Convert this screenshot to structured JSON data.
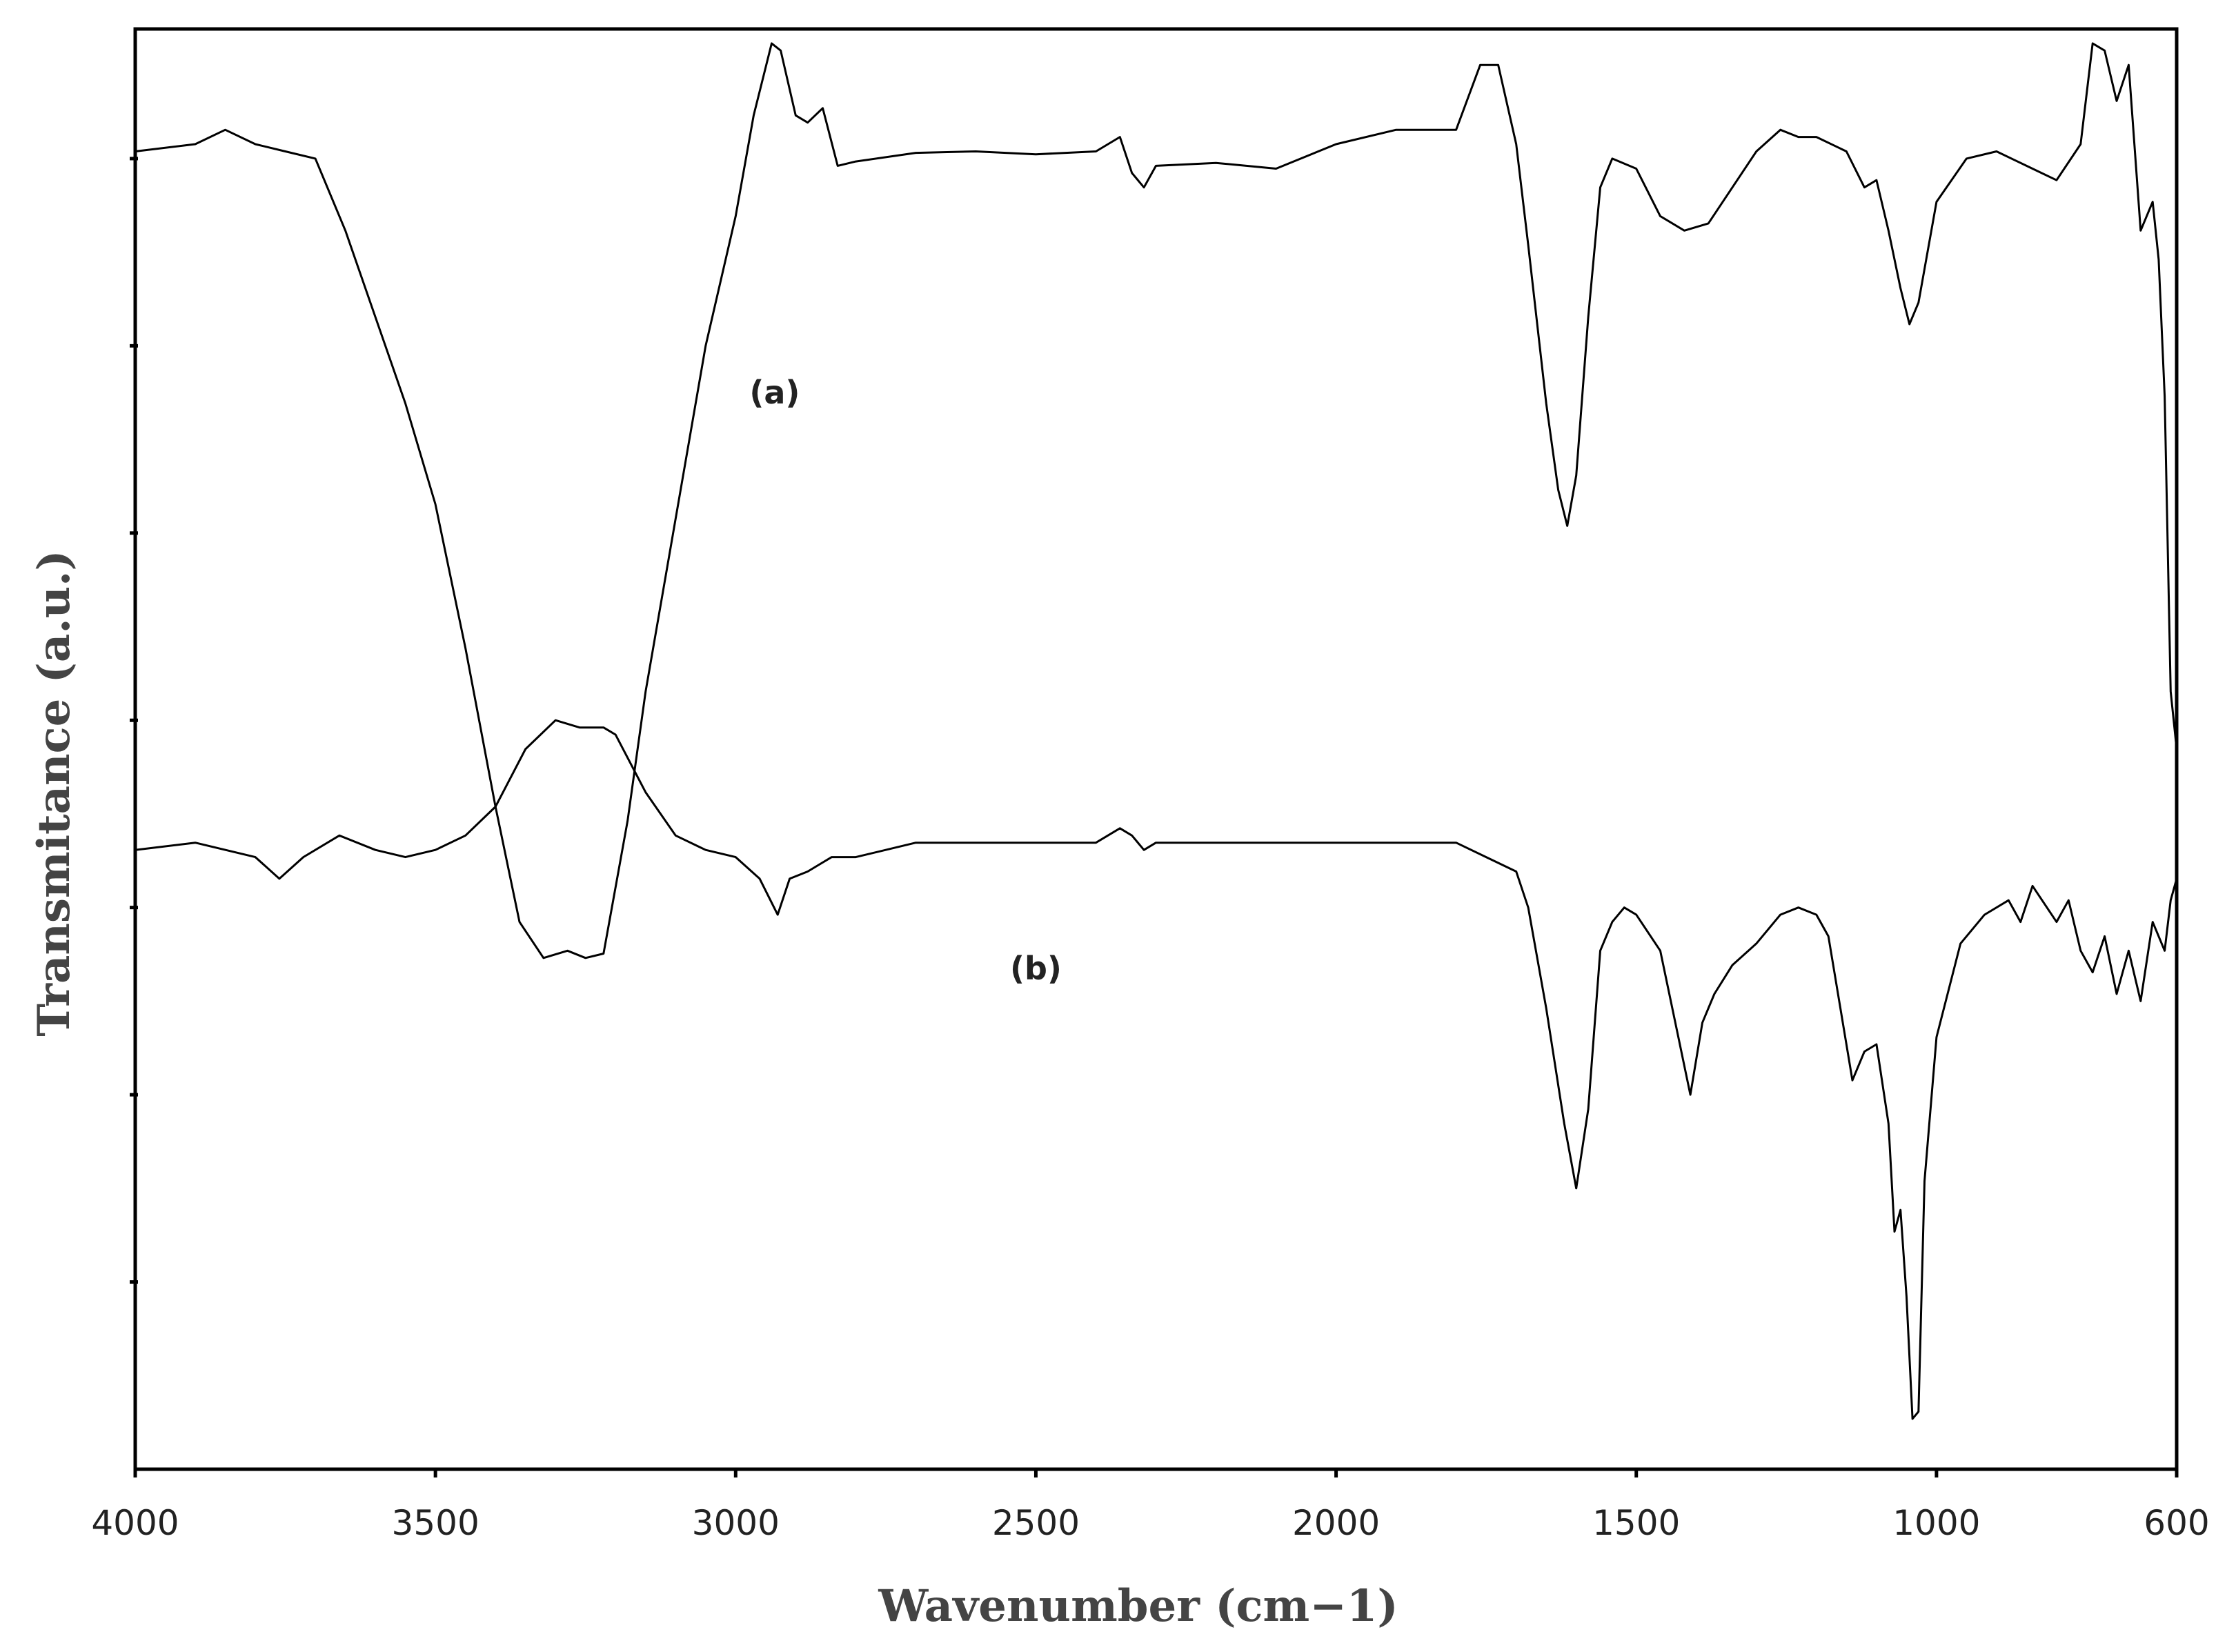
{
  "chart_data": {
    "type": "line",
    "title": "",
    "xlabel": "Wavenumber (cm−1)",
    "ylabel": "Transmitance (a.u.)",
    "xlim": [
      4000,
      600
    ],
    "x_reversed": true,
    "xticks": [
      "4000",
      "3500",
      "3000",
      "2500",
      "2000",
      "1500",
      "1000",
      "600"
    ],
    "ylim": [
      0,
      100
    ],
    "yticks_labeled": false,
    "yticks": [
      13,
      26,
      39,
      52,
      65,
      78,
      91
    ],
    "grid": false,
    "legend": "none",
    "series": [
      {
        "name": "(a)",
        "x": [
          4000,
          3900,
          3850,
          3800,
          3750,
          3700,
          3650,
          3600,
          3550,
          3500,
          3450,
          3400,
          3360,
          3320,
          3280,
          3250,
          3220,
          3180,
          3150,
          3100,
          3050,
          3000,
          2970,
          2940,
          2925,
          2900,
          2880,
          2855,
          2830,
          2800,
          2700,
          2600,
          2500,
          2400,
          2360,
          2340,
          2320,
          2300,
          2200,
          2100,
          2000,
          1900,
          1800,
          1760,
          1730,
          1700,
          1680,
          1650,
          1630,
          1615,
          1600,
          1580,
          1560,
          1540,
          1500,
          1460,
          1420,
          1380,
          1340,
          1300,
          1260,
          1230,
          1200,
          1150,
          1120,
          1100,
          1080,
          1060,
          1045,
          1030,
          1000,
          950,
          900,
          850,
          800,
          760,
          740,
          720,
          700,
          680,
          660,
          640,
          630,
          620,
          610,
          600
        ],
        "y": [
          91.5,
          92,
          93,
          92,
          91.5,
          91,
          86,
          80,
          74,
          67,
          57,
          46,
          38,
          35.5,
          36,
          35.5,
          35.8,
          45,
          54,
          66,
          78,
          87,
          94,
          99,
          98.5,
          94,
          93.5,
          94.5,
          90.5,
          90.8,
          91.4,
          91.5,
          91.3,
          91.5,
          92.5,
          90,
          89,
          90.5,
          90.7,
          90.3,
          92,
          93,
          93,
          97.5,
          97.5,
          92,
          85,
          74,
          68,
          65.5,
          69,
          80,
          89,
          91,
          90.3,
          87,
          86,
          86.5,
          89,
          91.5,
          93,
          92.5,
          92.5,
          91.5,
          89,
          89.5,
          86,
          82,
          79.5,
          81,
          88,
          91,
          91.5,
          90.5,
          89.5,
          92,
          99,
          98.5,
          95,
          97.5,
          86,
          88,
          84,
          74.5,
          54,
          50
        ]
      },
      {
        "name": "(b)",
        "x": [
          4000,
          3900,
          3800,
          3760,
          3720,
          3660,
          3600,
          3550,
          3500,
          3450,
          3400,
          3350,
          3300,
          3260,
          3220,
          3200,
          3150,
          3100,
          3050,
          3000,
          2960,
          2930,
          2910,
          2880,
          2860,
          2840,
          2800,
          2700,
          2600,
          2500,
          2400,
          2360,
          2340,
          2320,
          2300,
          2200,
          2100,
          2000,
          1900,
          1800,
          1700,
          1680,
          1650,
          1620,
          1600,
          1580,
          1560,
          1540,
          1520,
          1500,
          1460,
          1430,
          1410,
          1390,
          1370,
          1340,
          1300,
          1260,
          1230,
          1200,
          1180,
          1160,
          1140,
          1120,
          1100,
          1080,
          1070,
          1060,
          1050,
          1040,
          1030,
          1020,
          1000,
          960,
          920,
          880,
          860,
          840,
          800,
          780,
          760,
          740,
          720,
          700,
          680,
          660,
          640,
          620,
          610,
          600
        ],
        "y": [
          43,
          43.5,
          42.5,
          41,
          42.5,
          44,
          43,
          42.5,
          43,
          44,
          46,
          50,
          52,
          51.5,
          51.5,
          51,
          47,
          44,
          43,
          42.5,
          41,
          38.5,
          41,
          41.5,
          42,
          42.5,
          42.5,
          43.5,
          43.5,
          43.5,
          43.5,
          44.5,
          44,
          43,
          43.5,
          43.5,
          43.5,
          43.5,
          43.5,
          43.5,
          41.5,
          39,
          32,
          24,
          19.5,
          25,
          36,
          38,
          39,
          38.5,
          36,
          30,
          26,
          31,
          33,
          35,
          36.5,
          38.5,
          39,
          38.5,
          37,
          32,
          27,
          29,
          29.5,
          24,
          16.5,
          18,
          12,
          3.5,
          4,
          20,
          30,
          36.5,
          38.5,
          39.5,
          38,
          40.5,
          38,
          39.5,
          36,
          34.5,
          37,
          33,
          36,
          32.5,
          38,
          36,
          39.5,
          41
        ]
      }
    ]
  }
}
